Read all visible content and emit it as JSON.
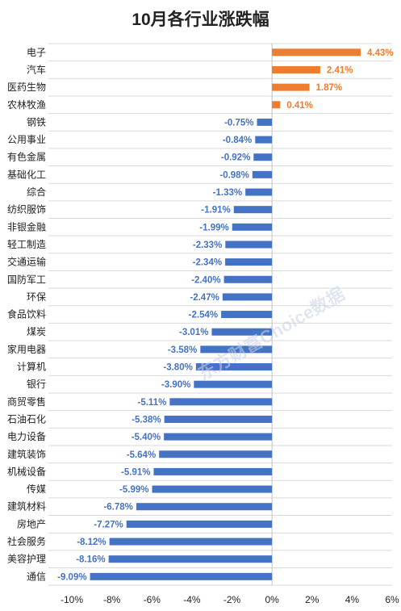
{
  "chart_data": {
    "type": "bar",
    "orientation": "horizontal",
    "title": "10月各行业涨跌幅",
    "categories": [
      "电子",
      "汽车",
      "医药生物",
      "农林牧渔",
      "钢铁",
      "公用事业",
      "有色金属",
      "基础化工",
      "综合",
      "纺织服饰",
      "非银金融",
      "轻工制造",
      "交通运输",
      "国防军工",
      "环保",
      "食品饮料",
      "煤炭",
      "家用电器",
      "计算机",
      "银行",
      "商贸零售",
      "石油石化",
      "电力设备",
      "建筑装饰",
      "机械设备",
      "传媒",
      "建筑材料",
      "房地产",
      "社会服务",
      "美容护理",
      "通信"
    ],
    "values": [
      4.43,
      2.41,
      1.87,
      0.41,
      -0.75,
      -0.84,
      -0.92,
      -0.98,
      -1.33,
      -1.91,
      -1.99,
      -2.33,
      -2.34,
      -2.4,
      -2.47,
      -2.54,
      -3.01,
      -3.58,
      -3.8,
      -3.9,
      -5.11,
      -5.38,
      -5.4,
      -5.64,
      -5.91,
      -5.99,
      -6.78,
      -7.27,
      -8.12,
      -8.16,
      -9.09
    ],
    "value_labels": [
      "4.43%",
      "2.41%",
      "1.87%",
      "0.41%",
      "-0.75%",
      "-0.84%",
      "-0.92%",
      "-0.98%",
      "-1.33%",
      "-1.91%",
      "-1.99%",
      "-2.33%",
      "-2.34%",
      "-2.40%",
      "-2.47%",
      "-2.54%",
      "-3.01%",
      "-3.58%",
      "-3.80%",
      "-3.90%",
      "-5.11%",
      "-5.38%",
      "-5.40%",
      "-5.64%",
      "-5.91%",
      "-5.99%",
      "-6.78%",
      "-7.27%",
      "-8.12%",
      "-8.16%",
      "-9.09%"
    ],
    "xlim": [
      -10,
      6
    ],
    "x_ticks": [
      -10,
      -8,
      -6,
      -4,
      -2,
      0,
      2,
      4,
      6
    ],
    "x_tick_labels": [
      "-10%",
      "-8%",
      "-6%",
      "-4%",
      "-2%",
      "0%",
      "2%",
      "4%",
      "6%"
    ],
    "grid": "horizontal-lines",
    "colors": {
      "positive": "#ED7D31",
      "negative": "#4472C4",
      "grid": "#d9d9d9",
      "axis": "#bfbfbf"
    }
  },
  "watermark": "东方财富Choice数据"
}
